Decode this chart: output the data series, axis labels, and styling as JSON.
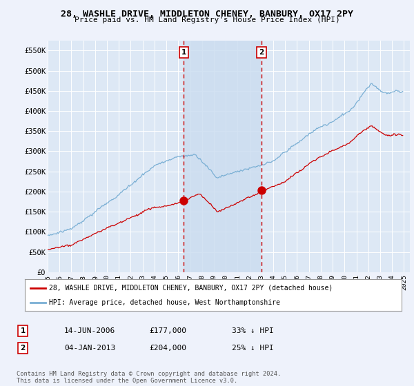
{
  "title": "28, WASHLE DRIVE, MIDDLETON CHENEY, BANBURY, OX17 2PY",
  "subtitle": "Price paid vs. HM Land Registry's House Price Index (HPI)",
  "legend_line1": "28, WASHLE DRIVE, MIDDLETON CHENEY, BANBURY, OX17 2PY (detached house)",
  "legend_line2": "HPI: Average price, detached house, West Northamptonshire",
  "transaction1_date": "14-JUN-2006",
  "transaction1_price": "£177,000",
  "transaction1_hpi": "33% ↓ HPI",
  "transaction2_date": "04-JAN-2013",
  "transaction2_price": "£204,000",
  "transaction2_hpi": "25% ↓ HPI",
  "footnote": "Contains HM Land Registry data © Crown copyright and database right 2024.\nThis data is licensed under the Open Government Licence v3.0.",
  "ylim": [
    0,
    575000
  ],
  "yticks": [
    0,
    50000,
    100000,
    150000,
    200000,
    250000,
    300000,
    350000,
    400000,
    450000,
    500000,
    550000
  ],
  "ytick_labels": [
    "£0",
    "£50K",
    "£100K",
    "£150K",
    "£200K",
    "£250K",
    "£300K",
    "£350K",
    "£400K",
    "£450K",
    "£500K",
    "£550K"
  ],
  "background_color": "#eef2fb",
  "plot_bg_color": "#dde8f5",
  "grid_color": "#ffffff",
  "red_line_color": "#cc0000",
  "blue_line_color": "#7aafd4",
  "shade_color": "#ccddf0",
  "vline_color": "#cc0000",
  "marker_color": "#cc0000",
  "transaction1_x": 2006.46,
  "transaction1_y": 177000,
  "transaction2_x": 2013.01,
  "transaction2_y": 204000,
  "xmin": 1995.0,
  "xmax": 2025.5,
  "xticks": [
    1995,
    1996,
    1997,
    1998,
    1999,
    2000,
    2001,
    2002,
    2003,
    2004,
    2005,
    2006,
    2007,
    2008,
    2009,
    2010,
    2011,
    2012,
    2013,
    2014,
    2015,
    2016,
    2017,
    2018,
    2019,
    2020,
    2021,
    2022,
    2023,
    2024,
    2025
  ]
}
